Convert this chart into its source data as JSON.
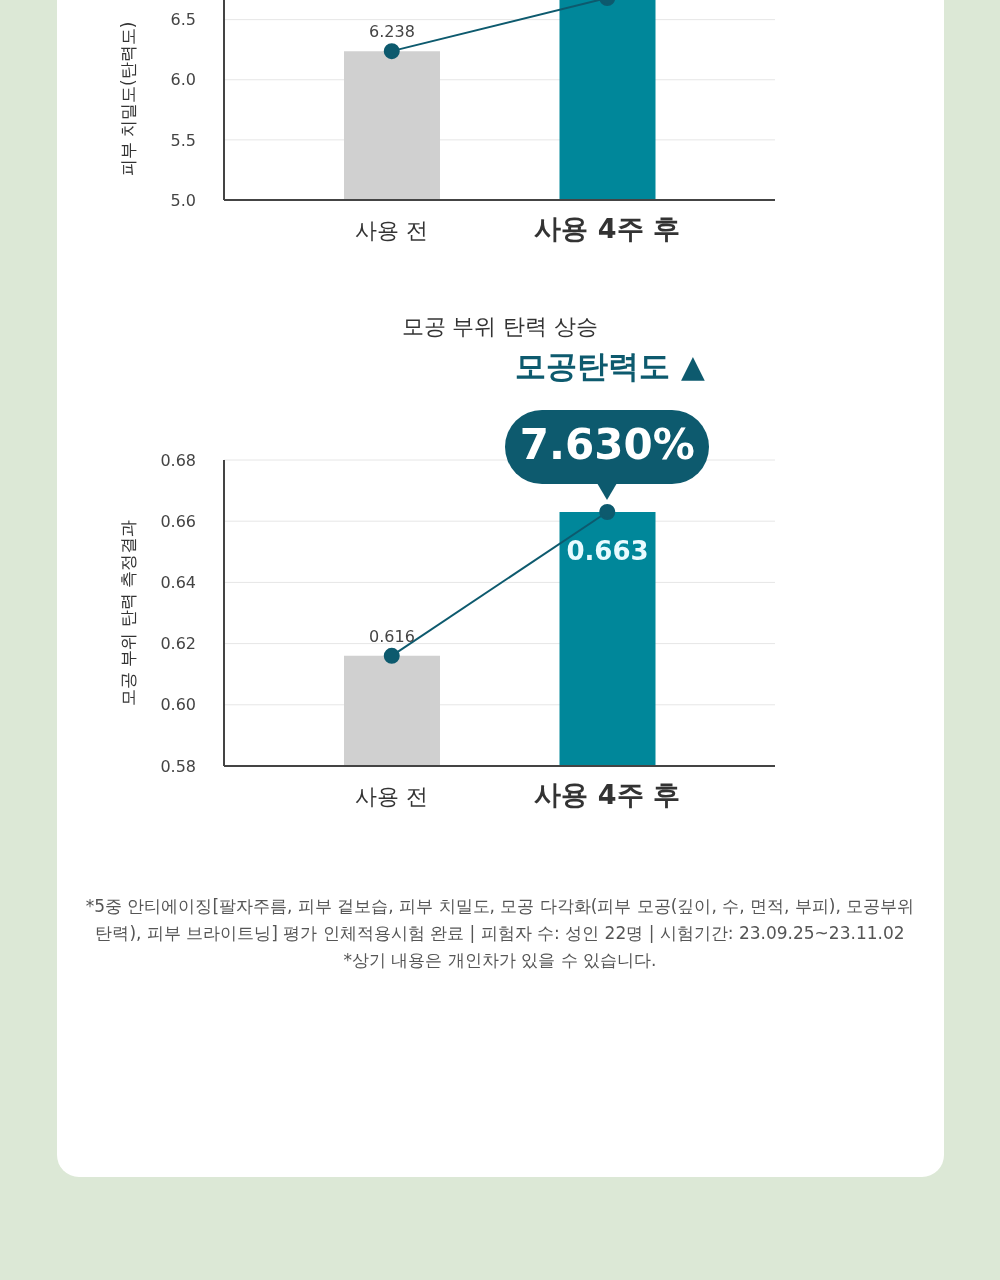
{
  "chart_data": [
    {
      "type": "bar",
      "ylabel": "피부 치밀도(탄력도)",
      "categories": [
        "사용 전",
        "사용 4주 후"
      ],
      "ylim": [
        5.0,
        6.68
      ],
      "yticks": [
        {
          "value": 5.0,
          "label": "5.0"
        },
        {
          "value": 5.5,
          "label": "5.5"
        },
        {
          "value": 6.0,
          "label": "6.0"
        },
        {
          "value": 6.5,
          "label": "6.5"
        }
      ],
      "grid": "y",
      "series": [
        {
          "colors": [
            "#d0d0d0",
            "#00879a"
          ],
          "values": [
            6.238,
            6.68
          ],
          "value_labels": [
            "6.238",
            null
          ]
        },
        {
          "type": "line",
          "color": "#0d5a6e",
          "values": [
            6.238,
            6.68
          ],
          "marker": "circle"
        }
      ]
    },
    {
      "type": "bar",
      "title": "모공 부위 탄력 상승",
      "subtitle": "모공탄력도 ▲",
      "ylabel": "모공 부위 탄력 측정결과",
      "categories": [
        "사용 전",
        "사용 4주 후"
      ],
      "ylim": [
        0.58,
        0.68
      ],
      "yticks": [
        0.58,
        {
          "value": 0.6,
          "label": "0.60"
        },
        0.62,
        0.64,
        0.66,
        0.68
      ],
      "grid": "y",
      "series": [
        {
          "colors": [
            "#d0d0d0",
            "#00879a"
          ],
          "values": [
            0.616,
            0.663
          ],
          "value_labels": [
            "0.616",
            "0.663"
          ]
        },
        {
          "type": "line",
          "color": "#0d5a6e",
          "values": [
            0.616,
            0.663
          ],
          "marker": "circle"
        }
      ],
      "annotations": [
        {
          "text": "7.630%",
          "x": "사용 4주 후",
          "y": 0.663
        },
        "*5중 안티에이징[팔자주름, 피부 겉보습, 피부 치밀도, 모공 다각화(피부 모공(깊이, 수, 면적, 부피), 모공부위 탄력), 피부 브라이트닝] 평가 인체적용시험 완료 | 피험자 수: 성인 22명 | 시험기간: 23.09.25~23.11.02",
        "*상기 내용은 개인차가 있을 수 있습니다."
      ]
    }
  ]
}
